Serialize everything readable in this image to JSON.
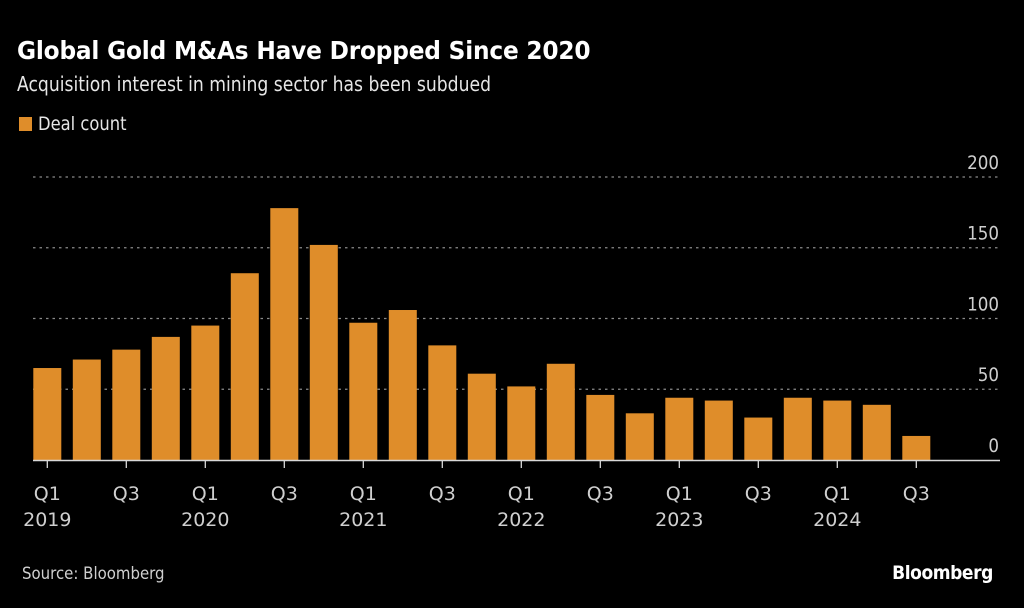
{
  "header": {
    "title": "Global Gold M&As Have Dropped Since 2020",
    "subtitle": "Acquisition interest in mining sector has been subdued"
  },
  "legend": {
    "label": "Deal count",
    "color": "#df8d2a"
  },
  "footer": {
    "source": "Source: Bloomberg",
    "brand": "Bloomberg"
  },
  "chart_data": {
    "type": "bar",
    "title": "Global Gold M&As Have Dropped Since 2020",
    "subtitle": "Acquisition interest in mining sector has been subdued",
    "xlabel": "",
    "ylabel": "",
    "ylim": [
      0,
      200
    ],
    "yticks": [
      0,
      50,
      100,
      150,
      200
    ],
    "y_axis_position": "right",
    "grid": true,
    "legend_position": "top-left",
    "categories": [
      "Q1 2019",
      "Q2 2019",
      "Q3 2019",
      "Q4 2019",
      "Q1 2020",
      "Q2 2020",
      "Q3 2020",
      "Q4 2020",
      "Q1 2021",
      "Q2 2021",
      "Q3 2021",
      "Q4 2021",
      "Q1 2022",
      "Q2 2022",
      "Q3 2022",
      "Q4 2022",
      "Q1 2023",
      "Q2 2023",
      "Q3 2023",
      "Q4 2023",
      "Q1 2024",
      "Q2 2024",
      "Q3 2024"
    ],
    "xtick_labels": [
      {
        "index": 0,
        "line1": "Q1",
        "line2": "2019"
      },
      {
        "index": 2,
        "line1": "Q3",
        "line2": ""
      },
      {
        "index": 4,
        "line1": "Q1",
        "line2": "2020"
      },
      {
        "index": 6,
        "line1": "Q3",
        "line2": ""
      },
      {
        "index": 8,
        "line1": "Q1",
        "line2": "2021"
      },
      {
        "index": 10,
        "line1": "Q3",
        "line2": ""
      },
      {
        "index": 12,
        "line1": "Q1",
        "line2": "2022"
      },
      {
        "index": 14,
        "line1": "Q3",
        "line2": ""
      },
      {
        "index": 16,
        "line1": "Q1",
        "line2": "2023"
      },
      {
        "index": 18,
        "line1": "Q3",
        "line2": ""
      },
      {
        "index": 20,
        "line1": "Q1",
        "line2": "2024"
      },
      {
        "index": 22,
        "line1": "Q3",
        "line2": ""
      }
    ],
    "series": [
      {
        "name": "Deal count",
        "color": "#df8d2a",
        "values": [
          65,
          71,
          78,
          87,
          95,
          132,
          178,
          152,
          97,
          106,
          81,
          61,
          52,
          68,
          46,
          33,
          44,
          42,
          30,
          44,
          42,
          39,
          17
        ]
      }
    ]
  }
}
